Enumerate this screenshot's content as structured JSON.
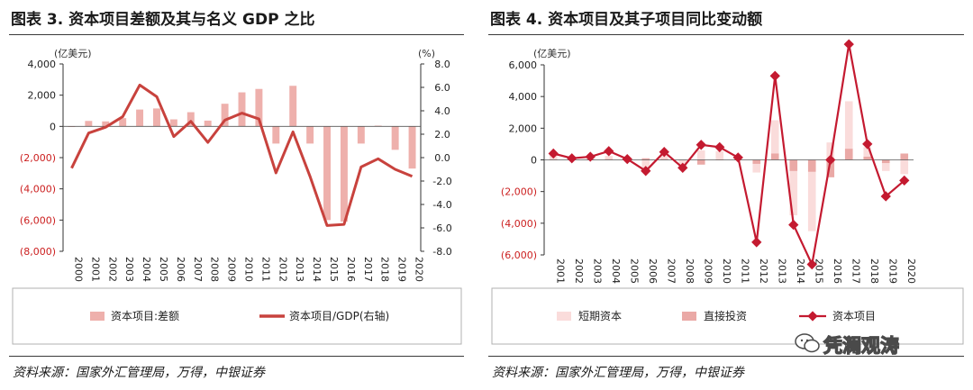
{
  "colors": {
    "bar": "#eeb0ac",
    "line": "#c8423d",
    "negative_tick": "#cc2020",
    "short_term": "#fadcdb",
    "direct_invest": "#eaa9a6",
    "capital_line": "#c41a30",
    "title_rule": "#3a3a3a"
  },
  "chart_data": [
    {
      "type": "bar",
      "title": "图表 3. 资本项目差额及其与名义 GDP 之比",
      "ylabel_left": "(亿美元)",
      "ylabel_right": "(%)",
      "categories": [
        "2000",
        "2001",
        "2002",
        "2003",
        "2004",
        "2005",
        "2006",
        "2007",
        "2008",
        "2009",
        "2010",
        "2011",
        "2012",
        "2013",
        "2014",
        "2015",
        "2016",
        "2017",
        "2018",
        "2019",
        "2020"
      ],
      "ylim_left": [
        -8000,
        4000
      ],
      "ylim_right": [
        -8.0,
        8.0
      ],
      "yticks_left": [
        "4,000",
        "2,000",
        "0",
        "(2,000)",
        "(4,000)",
        "(6,000)",
        "(8,000)"
      ],
      "yticks_right": [
        "8.0",
        "6.0",
        "4.0",
        "2.0",
        "0.0",
        "-2.0",
        "-4.0",
        "-6.0",
        "-8.0"
      ],
      "series": [
        {
          "name": "资本项目:差额",
          "axis": "left",
          "kind": "bar",
          "values": [
            -20,
            350,
            320,
            530,
            1080,
            1150,
            450,
            910,
            370,
            1450,
            2180,
            2400,
            -1100,
            2600,
            -1100,
            -6000,
            -6100,
            -1100,
            50,
            -1500,
            -2700
          ]
        },
        {
          "name": "资本项目/GDP(右轴)",
          "axis": "right",
          "kind": "line",
          "values": [
            -0.9,
            2.1,
            2.6,
            3.5,
            6.2,
            5.2,
            1.8,
            3.1,
            1.3,
            3.2,
            3.8,
            3.3,
            -1.3,
            2.2,
            -1.6,
            -5.8,
            -5.7,
            -0.8,
            -0.1,
            -1.0,
            -1.6
          ]
        }
      ]
    },
    {
      "type": "bar",
      "title": "图表 4. 资本项目及其子项目同比变动额",
      "ylabel": "(亿美元)",
      "categories": [
        "2001",
        "2002",
        "2003",
        "2004",
        "2005",
        "2006",
        "2007",
        "2008",
        "2009",
        "2010",
        "2011",
        "2012",
        "2013",
        "2014",
        "2015",
        "2016",
        "2017",
        "2018",
        "2019",
        "2020"
      ],
      "ylim": [
        -6000,
        6000
      ],
      "yticks": [
        "6,000",
        "4,000",
        "2,000",
        "0",
        "(2,000)",
        "(4,000)",
        "(6,000)"
      ],
      "series": [
        {
          "name": "短期资本",
          "kind": "bar",
          "values": [
            300,
            50,
            150,
            250,
            -50,
            -600,
            250,
            -500,
            600,
            550,
            0,
            -800,
            2500,
            -3500,
            -4500,
            1100,
            3700,
            800,
            -700,
            -900
          ]
        },
        {
          "name": "直接投资",
          "kind": "bar",
          "values": [
            0,
            0,
            0,
            50,
            0,
            100,
            50,
            0,
            -300,
            0,
            0,
            -250,
            400,
            -700,
            -750,
            -1100,
            700,
            200,
            -200,
            400
          ]
        },
        {
          "name": "资本项目",
          "kind": "line",
          "values": [
            400,
            100,
            200,
            550,
            50,
            -700,
            500,
            -500,
            950,
            800,
            150,
            -5200,
            5300,
            -4100,
            -6600,
            0,
            7300,
            1000,
            -2300,
            -1300
          ]
        }
      ]
    }
  ],
  "legend1": {
    "bar": "资本项目:差额",
    "line": "资本项目/GDP(右轴)"
  },
  "legend2": {
    "short": "短期资本",
    "direct": "直接投资",
    "total": "资本项目"
  },
  "source1": "资料来源：国家外汇管理局，万得，中银证券",
  "source2": "资料来源：国家外汇管理局，万得，中银证券",
  "watermark": "凭澜观涛"
}
